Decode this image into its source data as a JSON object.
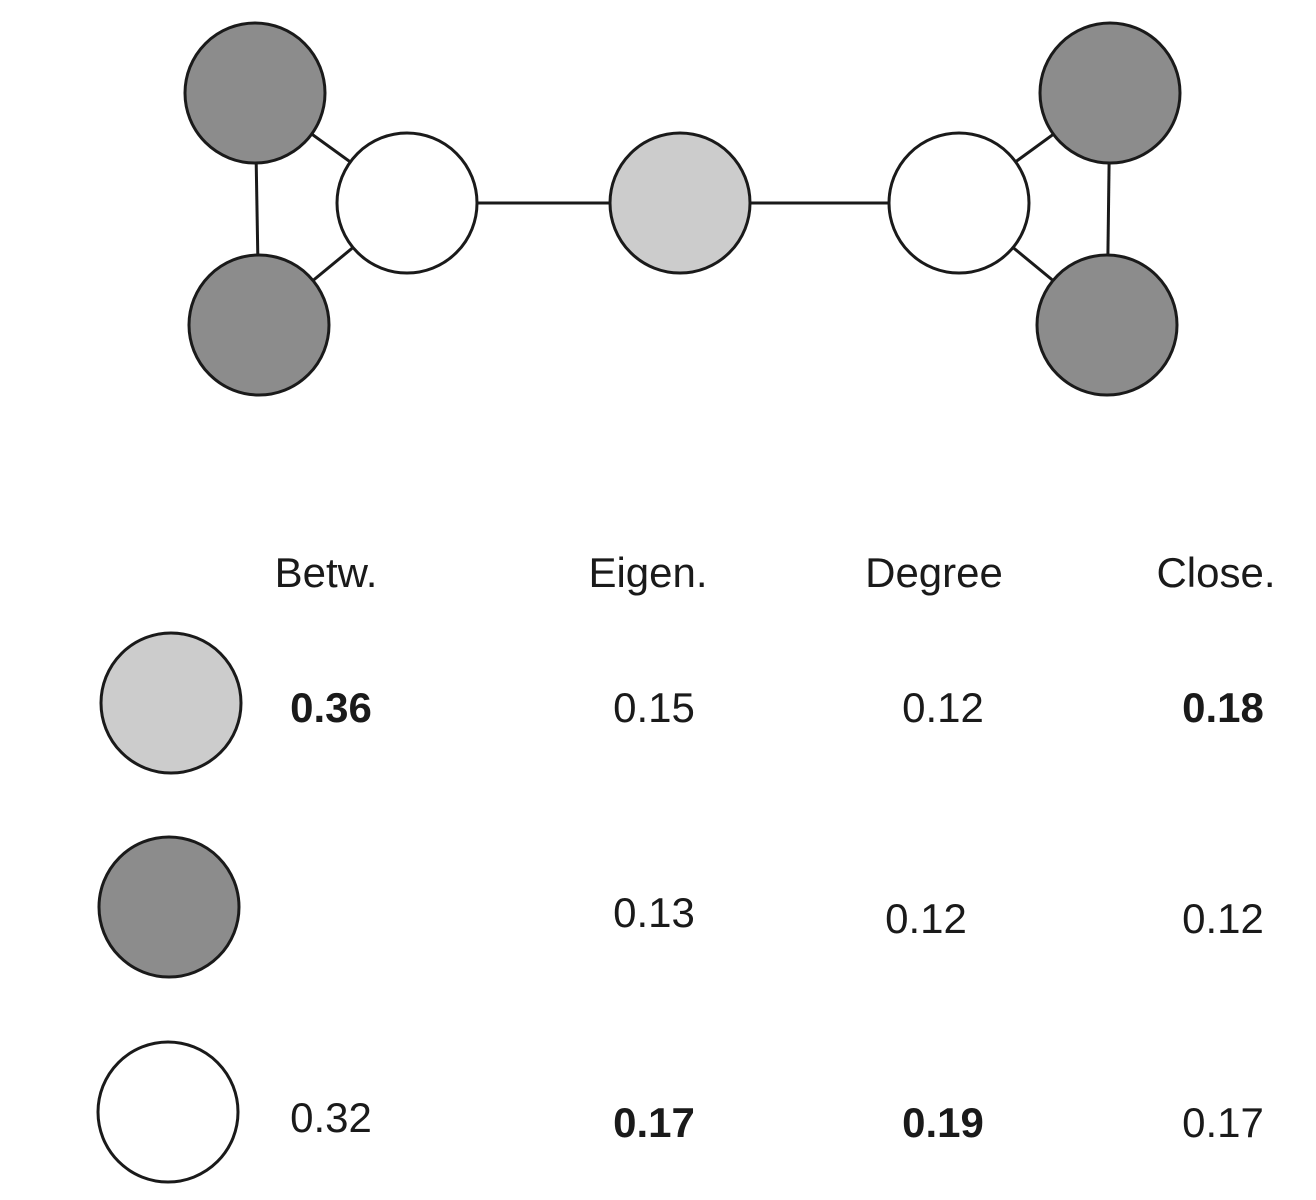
{
  "colors": {
    "light_gray": "#cccccc",
    "dark_gray": "#8c8c8c",
    "white": "#ffffff",
    "stroke": "#1a1a1a"
  },
  "network": {
    "nodes": [
      {
        "id": "left-top",
        "fill": "dark_gray"
      },
      {
        "id": "left-bottom",
        "fill": "dark_gray"
      },
      {
        "id": "left-hub",
        "fill": "white"
      },
      {
        "id": "center",
        "fill": "light_gray"
      },
      {
        "id": "right-hub",
        "fill": "white"
      },
      {
        "id": "right-top",
        "fill": "dark_gray"
      },
      {
        "id": "right-bottom",
        "fill": "dark_gray"
      }
    ],
    "edges": [
      [
        "left-top",
        "left-bottom"
      ],
      [
        "left-top",
        "left-hub"
      ],
      [
        "left-bottom",
        "left-hub"
      ],
      [
        "left-hub",
        "center"
      ],
      [
        "center",
        "right-hub"
      ],
      [
        "right-hub",
        "right-top"
      ],
      [
        "right-hub",
        "right-bottom"
      ],
      [
        "right-top",
        "right-bottom"
      ]
    ]
  },
  "table": {
    "headers": {
      "betw": "Betw.",
      "eigen": "Eigen.",
      "degree": "Degree",
      "close": "Close."
    },
    "rows": [
      {
        "legend_fill": "light_gray",
        "betw": "0.36",
        "betw_bold": true,
        "eigen": "0.15",
        "eigen_bold": false,
        "degree": "0.12",
        "degree_bold": false,
        "close": "0.18",
        "close_bold": true
      },
      {
        "legend_fill": "dark_gray",
        "betw": "",
        "betw_bold": false,
        "eigen": "0.13",
        "eigen_bold": false,
        "degree": "0.12",
        "degree_bold": false,
        "close": "0.12",
        "close_bold": false
      },
      {
        "legend_fill": "white",
        "betw": "0.32",
        "betw_bold": false,
        "eigen": "0.17",
        "eigen_bold": true,
        "degree": "0.19",
        "degree_bold": true,
        "close": "0.17",
        "close_bold": false
      }
    ]
  }
}
